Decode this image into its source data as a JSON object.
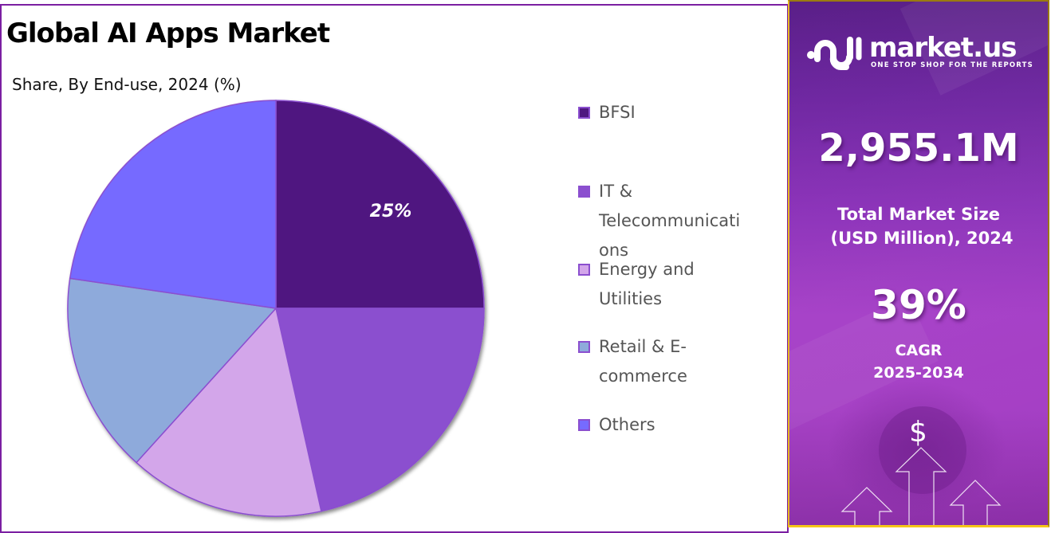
{
  "header": {
    "title": "Global AI Apps Market",
    "subtitle": "Share, By End-use, 2024 (%)"
  },
  "chart_data": {
    "type": "pie",
    "title": "Global AI Apps Market",
    "subtitle": "Share, By End-use, 2024 (%)",
    "categories": [
      "BFSI",
      "IT & Telecommunications",
      "Energy and Utilities",
      "Retail & E-commerce",
      "Others"
    ],
    "values": [
      25,
      21.5,
      15.2,
      15.6,
      22.7
    ],
    "colors": [
      "#4f1880",
      "#8b4fcf",
      "#d3a6ea",
      "#8eaadb",
      "#766bff"
    ],
    "data_labels": [
      {
        "category": "BFSI",
        "text": "25%"
      }
    ],
    "start_angle_deg": 0,
    "direction": "clockwise",
    "legend_position": "right"
  },
  "legend": {
    "items": [
      {
        "label": "BFSI",
        "color": "#4f1880"
      },
      {
        "label": "IT &\nTelecommunicati\nons",
        "color": "#8b4fcf"
      },
      {
        "label": "Energy and\nUtilities",
        "color": "#d3a6ea"
      },
      {
        "label": "Retail & E-\ncommerce",
        "color": "#8eaadb"
      },
      {
        "label": "Others",
        "color": "#766bff"
      }
    ]
  },
  "sidebar": {
    "brand_name": "market.us",
    "brand_tagline": "ONE STOP SHOP FOR THE REPORTS",
    "market_size_value": "2,955.1M",
    "market_size_label_line1": "Total Market Size",
    "market_size_label_line2": "(USD Million), 2024",
    "cagr_value": "39%",
    "cagr_label_line1": "CAGR",
    "cagr_label_line2": "2025-2034",
    "currency_symbol": "$"
  },
  "colors": {
    "frame_border": "#7b1fa2",
    "sidebar_border": "#9a7a10",
    "sidebar_bottom_border": "#f5c518",
    "slice_outline": "#8b4fcf"
  }
}
